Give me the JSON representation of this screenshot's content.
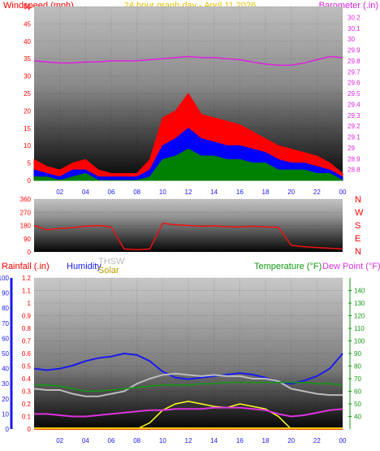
{
  "header": {
    "windspeed_label": "Windspeed (mph)",
    "title": "24 hour graph day - April 11 2026",
    "barometer_label": "Barometer (.in)"
  },
  "directions": [
    "N",
    "W",
    "S",
    "E",
    "N"
  ],
  "bottom_labels": {
    "rainfall": "Rainfall (.in)",
    "humidity": "Humidity",
    "thsw": "THSW",
    "solar": "Solar",
    "temperature": "Temperature (°F)",
    "dewpoint": "Dew Point (°F)"
  },
  "colors": {
    "wind_gust": "#ff0000",
    "wind_avg": "#0000ff",
    "wind_low": "#008000",
    "barometer": "#dd22dd",
    "direction": "#ee1111",
    "humidity": "#1a1aee",
    "thsw": "#bbbbbb",
    "solar": "#ffff22",
    "temperature": "#119911",
    "dewpoint": "#dd33dd",
    "rainfall": "#ff0000",
    "axis_left_blue": "#1a1aee",
    "axis_right_green": "#119911"
  },
  "chart_data": [
    {
      "type": "line",
      "name_ref": "wind-barometer",
      "title": "24 hour graph day - April 11 2026",
      "x": [
        0,
        1,
        2,
        3,
        4,
        5,
        6,
        7,
        8,
        9,
        10,
        11,
        12,
        13,
        14,
        15,
        16,
        17,
        18,
        19,
        20,
        21,
        22,
        23,
        24
      ],
      "xticks": [
        "02",
        "04",
        "06",
        "08",
        "10",
        "12",
        "14",
        "16",
        "18",
        "20",
        "22",
        "00"
      ],
      "ylabel_left": "Windspeed (mph)",
      "ylim_left": [
        0,
        50
      ],
      "yticks_left": [
        0,
        5,
        10,
        15,
        20,
        25,
        30,
        35,
        40,
        45,
        50
      ],
      "ylabel_right": "Barometer (.in)",
      "ylim_right": [
        28.7,
        30.3
      ],
      "yticks_right": [
        28.8,
        28.9,
        29.0,
        29.1,
        29.2,
        29.3,
        29.4,
        29.5,
        29.6,
        29.7,
        29.8,
        29.9,
        30.0,
        30.1,
        30.2
      ],
      "series": [
        {
          "name": "Windspeed gust",
          "axis": "left",
          "values": [
            6,
            4,
            3,
            5,
            6,
            3,
            2,
            2,
            2,
            6,
            18,
            20,
            25,
            19,
            18,
            17,
            16,
            14,
            12,
            10,
            9,
            8,
            7,
            5,
            2
          ]
        },
        {
          "name": "Windspeed avg",
          "axis": "left",
          "values": [
            3,
            2,
            1,
            3,
            3,
            1,
            1,
            1,
            1,
            3,
            10,
            12,
            15,
            12,
            11,
            10,
            10,
            9,
            8,
            6,
            5,
            5,
            4,
            3,
            1
          ]
        },
        {
          "name": "Windspeed low",
          "axis": "left",
          "values": [
            1,
            1,
            0,
            1,
            2,
            0,
            0,
            0,
            0,
            1,
            6,
            7,
            9,
            7,
            7,
            6,
            6,
            5,
            5,
            3,
            3,
            3,
            2,
            2,
            0
          ]
        },
        {
          "name": "Barometer",
          "axis": "right",
          "values": [
            29.8,
            29.79,
            29.78,
            29.78,
            29.79,
            29.79,
            29.8,
            29.8,
            29.8,
            29.81,
            29.82,
            29.83,
            29.84,
            29.83,
            29.83,
            29.82,
            29.81,
            29.79,
            29.77,
            29.76,
            29.76,
            29.78,
            29.81,
            29.84,
            29.83
          ]
        }
      ]
    },
    {
      "type": "line",
      "name_ref": "wind-direction",
      "x": [
        0,
        1,
        2,
        3,
        4,
        5,
        6,
        7,
        8,
        9,
        10,
        11,
        12,
        13,
        14,
        15,
        16,
        17,
        18,
        19,
        20,
        21,
        22,
        23,
        24
      ],
      "ylim": [
        0,
        360
      ],
      "yticks": [
        0,
        90,
        180,
        270,
        360
      ],
      "series": [
        {
          "name": "Wind direction",
          "values": [
            180,
            150,
            160,
            165,
            175,
            180,
            170,
            20,
            15,
            20,
            195,
            185,
            180,
            175,
            178,
            172,
            170,
            175,
            170,
            168,
            45,
            35,
            30,
            25,
            20
          ]
        }
      ]
    },
    {
      "type": "line",
      "name_ref": "rain-humidity-temp",
      "x": [
        0,
        1,
        2,
        3,
        4,
        5,
        6,
        7,
        8,
        9,
        10,
        11,
        12,
        13,
        14,
        15,
        16,
        17,
        18,
        19,
        20,
        21,
        22,
        23,
        24
      ],
      "xticks": [
        "02",
        "04",
        "06",
        "08",
        "10",
        "12",
        "14",
        "16",
        "18",
        "20",
        "22",
        "00"
      ],
      "ylim_left": [
        0,
        1.2
      ],
      "yticks_left": [
        0,
        0.1,
        0.2,
        0.3,
        0.4,
        0.5,
        0.6,
        0.7,
        0.8,
        0.9,
        1,
        1.1,
        1.2
      ],
      "ylim_left_outer": [
        0,
        100
      ],
      "yticks_left_outer": [
        0,
        10,
        20,
        30,
        40,
        50,
        60,
        70,
        80,
        90,
        100
      ],
      "ylim_right": [
        30,
        150
      ],
      "yticks_right": [
        40,
        50,
        60,
        70,
        80,
        90,
        100,
        110,
        120,
        130,
        140
      ],
      "series": [
        {
          "name": "Humidity",
          "axis": "left_outer",
          "values": [
            40,
            39,
            40,
            42,
            45,
            47,
            48,
            50,
            49,
            45,
            38,
            34,
            33,
            34,
            35,
            36,
            37,
            36,
            34,
            31,
            30,
            32,
            35,
            40,
            50
          ]
        },
        {
          "name": "THSW",
          "axis": "right",
          "values": [
            62,
            61,
            61,
            58,
            56,
            56,
            58,
            60,
            66,
            70,
            73,
            74,
            73,
            72,
            73,
            72,
            72,
            70,
            70,
            68,
            62,
            60,
            58,
            57,
            57
          ]
        },
        {
          "name": "Solar",
          "axis": "left",
          "values": [
            0,
            0,
            0,
            0,
            0,
            0,
            0,
            0,
            0,
            0.05,
            0.15,
            0.2,
            0.22,
            0.2,
            0.18,
            0.17,
            0.2,
            0.18,
            0.16,
            0.1,
            0,
            0,
            0,
            0,
            0
          ]
        },
        {
          "name": "Temperature",
          "axis": "right",
          "values": [
            65,
            65,
            64,
            62,
            60,
            60,
            61,
            62,
            63,
            64,
            65,
            65,
            65,
            66,
            66,
            67,
            67,
            67,
            67,
            67,
            67,
            67,
            66,
            66,
            65
          ]
        },
        {
          "name": "Dew Point",
          "axis": "right",
          "values": [
            42,
            42,
            41,
            40,
            40,
            41,
            42,
            43,
            44,
            45,
            45,
            46,
            46,
            46,
            47,
            47,
            47,
            46,
            45,
            42,
            40,
            41,
            43,
            45,
            46
          ]
        },
        {
          "name": "Rainfall",
          "axis": "left",
          "values": [
            0,
            0,
            0,
            0,
            0,
            0,
            0,
            0,
            0,
            0,
            0,
            0,
            0,
            0,
            0,
            0,
            0,
            0,
            0,
            0,
            0,
            0,
            0,
            0,
            0
          ]
        }
      ]
    }
  ]
}
